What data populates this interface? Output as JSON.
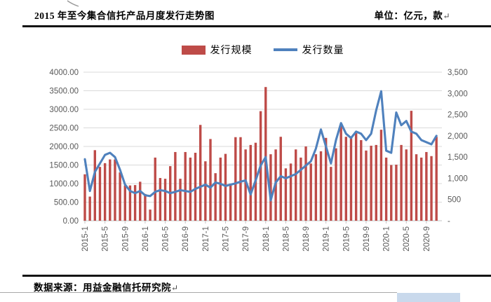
{
  "header": {
    "title": "2015 年至今集合信托产品月度发行走势图",
    "unit_label": "单位：亿元，款",
    "return_mark": "↵"
  },
  "legend": {
    "items": [
      {
        "label": "发行规模",
        "color": "#BE4B48",
        "swatch": "bar"
      },
      {
        "label": "发行数量",
        "color": "#4F81BD",
        "swatch": "line"
      }
    ]
  },
  "footer": {
    "source_label": "数据来源：用益金融信托研究院",
    "return_mark": "↵"
  },
  "colors": {
    "bar": "#BE4B48",
    "line": "#4F81BD",
    "grid": "#d9d9d9",
    "axis_text": "#595959",
    "baseline": "#c3c3c3",
    "rule": "#141414",
    "strip": "#c9d9ec"
  },
  "chart_data": {
    "type": "bar",
    "subtype": "combo-bar-line-dual-axis",
    "title": "2015 年至今集合信托产品月度发行走势图",
    "grid": true,
    "legend_position": "top",
    "x": [
      "2015-1",
      "2015-2",
      "2015-3",
      "2015-4",
      "2015-5",
      "2015-6",
      "2015-7",
      "2015-8",
      "2015-9",
      "2015-10",
      "2015-11",
      "2015-12",
      "2016-1",
      "2016-2",
      "2016-3",
      "2016-4",
      "2016-5",
      "2016-6",
      "2016-7",
      "2016-8",
      "2016-9",
      "2016-10",
      "2016-11",
      "2016-12",
      "2017-1",
      "2017-2",
      "2017-3",
      "2017-4",
      "2017-5",
      "2017-6",
      "2017-7",
      "2017-8",
      "2017-9",
      "2017-10",
      "2017-11",
      "2017-12",
      "2018-1",
      "2018-2",
      "2018-3",
      "2018-4",
      "2018-5",
      "2018-6",
      "2018-7",
      "2018-8",
      "2018-9",
      "2018-10",
      "2018-11",
      "2018-12",
      "2019-1",
      "2019-2",
      "2019-3",
      "2019-4",
      "2019-5",
      "2019-6",
      "2019-7",
      "2019-8",
      "2019-9",
      "2019-10",
      "2019-11",
      "2019-12",
      "2020-1",
      "2020-2",
      "2020-3",
      "2020-4",
      "2020-5",
      "2020-6",
      "2020-7",
      "2020-8",
      "2020-9",
      "2020-10",
      "2020-11"
    ],
    "x_tick_labels": [
      "2015-1",
      "2015-5",
      "2015-9",
      "2016-1",
      "2016-5",
      "2016-9",
      "2017-1",
      "2017-5",
      "2017-9",
      "2018-1",
      "2018-5",
      "2018-9",
      "2019-1",
      "2019-5",
      "2019-9",
      "2020-1",
      "2020-5",
      "2020-9"
    ],
    "series": [
      {
        "name": "发行规模",
        "type": "bar",
        "axis": "left",
        "unit": "亿元",
        "color": "#BE4B48",
        "values": [
          1250,
          650,
          1900,
          1450,
          1550,
          1650,
          1650,
          1300,
          950,
          950,
          960,
          1050,
          720,
          300,
          1700,
          1150,
          1130,
          1470,
          1850,
          1130,
          1850,
          1700,
          1830,
          2580,
          1600,
          2200,
          1280,
          1700,
          1800,
          1000,
          2250,
          2250,
          1920,
          2040,
          2100,
          2950,
          3600,
          1790,
          1920,
          2260,
          1410,
          1540,
          1920,
          1700,
          2000,
          1540,
          1790,
          1870,
          2230,
          1450,
          1950,
          2600,
          2260,
          2230,
          2360,
          2170,
          1890,
          2020,
          2040,
          2450,
          1700,
          1500,
          1510,
          2040,
          1920,
          2960,
          1790,
          1700,
          1850,
          1740,
          2260
        ]
      },
      {
        "name": "发行数量",
        "type": "line",
        "axis": "right",
        "unit": "款",
        "color": "#4F81BD",
        "values": [
          1450,
          700,
          1150,
          1350,
          1550,
          1600,
          1500,
          1200,
          850,
          700,
          650,
          700,
          600,
          580,
          680,
          720,
          700,
          650,
          680,
          720,
          700,
          680,
          750,
          800,
          850,
          780,
          900,
          870,
          820,
          850,
          880,
          920,
          950,
          620,
          950,
          1300,
          1500,
          480,
          900,
          1050,
          1000,
          1050,
          1100,
          1200,
          1300,
          1400,
          1700,
          2150,
          1750,
          1350,
          1900,
          2300,
          2050,
          1950,
          2100,
          2050,
          1900,
          2050,
          2600,
          3050,
          1650,
          1600,
          2550,
          2250,
          2350,
          2100,
          2050,
          1900,
          1850,
          1800,
          2000
        ]
      }
    ],
    "left_axis": {
      "min": 0,
      "max": 4000,
      "step": 500,
      "tick_labels": [
        "4000.00",
        "3500.00",
        "3000.00",
        "2500.00",
        "2000.00",
        "1500.00",
        "1000.00",
        "500.00",
        "0.00"
      ]
    },
    "right_axis": {
      "min": 0,
      "max": 3500,
      "step": 500,
      "tick_labels": [
        "3,500",
        "3,000",
        "2,500",
        "2,000",
        "1,500",
        "1,000",
        "500",
        "-"
      ]
    }
  }
}
